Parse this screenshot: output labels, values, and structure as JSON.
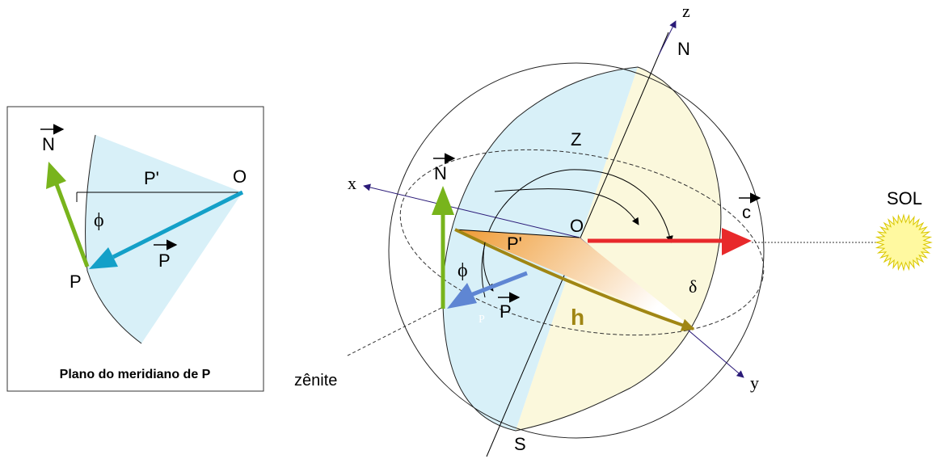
{
  "inset": {
    "caption": "Plano do meridiano de P",
    "labels": {
      "N_vec": "N",
      "P_prime": "P'",
      "O": "O",
      "phi": "ϕ",
      "P_vec": "P",
      "P": "P"
    }
  },
  "sphere": {
    "axis_labels": {
      "z": "z",
      "x": "x",
      "y": "y"
    },
    "pole_labels": {
      "north": "N",
      "south": "S"
    },
    "labels": {
      "Z": "Z",
      "O": "O",
      "N_vec": "N",
      "c_vec": "c",
      "P_prime": "P'",
      "phi": "ϕ",
      "P_vec": "P",
      "P_point": "P",
      "h": "h",
      "delta": "δ",
      "zenite": "zênite"
    }
  },
  "sun": {
    "label": "SOL"
  },
  "colors": {
    "green": "#78b41c",
    "cyan": "#14a0c8",
    "light_blue_fill": "#d8f0f8",
    "light_yellow_fill": "#fbf8dc",
    "red": "#e8292b",
    "gold": "#a08614",
    "axis": "#2a1a78",
    "sun_fill": "#fff9a0",
    "sun_stroke": "#d9c700",
    "orange": "#ef9a33",
    "blue_vec": "#5f86d3"
  }
}
